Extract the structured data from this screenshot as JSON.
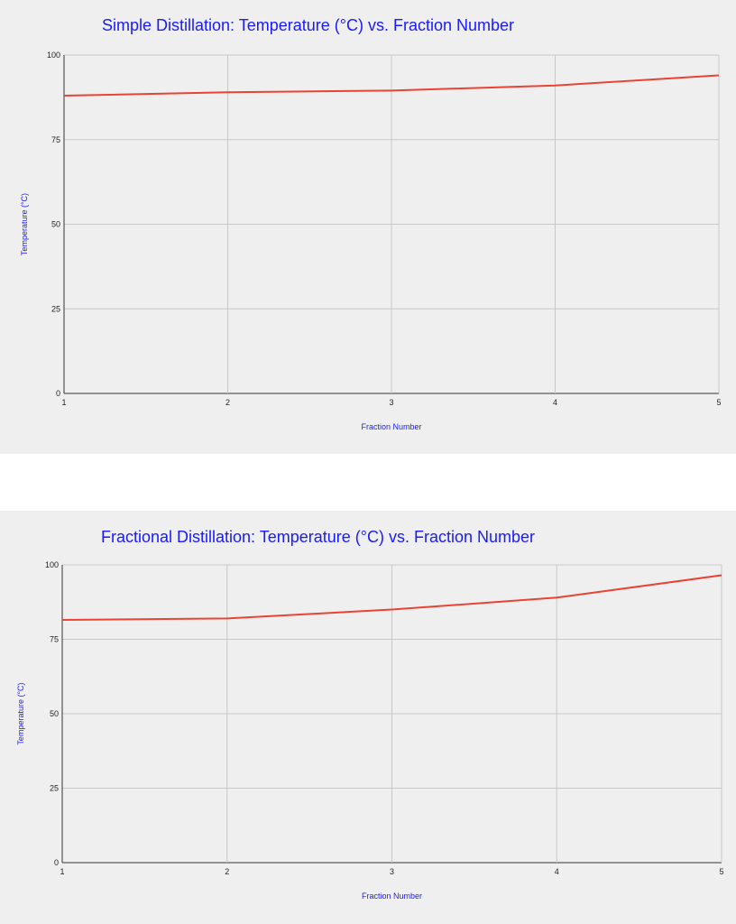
{
  "chart_data": [
    {
      "type": "line",
      "title": "Simple Distillation: Temperature (°C) vs. Fraction Number",
      "xlabel": "Fraction Number",
      "ylabel": "Temperature (°C)",
      "x": [
        1,
        2,
        3,
        4,
        5
      ],
      "series": [
        {
          "values": [
            88,
            89,
            89.5,
            91,
            94
          ],
          "color": "#ea4335"
        }
      ],
      "xlim": [
        1,
        5
      ],
      "ylim": [
        0,
        100
      ],
      "xticks": [
        "1",
        "2",
        "3",
        "4",
        "5"
      ],
      "yticks": [
        "0",
        "25",
        "50",
        "75",
        "100"
      ],
      "grid": true,
      "legend": "none"
    },
    {
      "type": "line",
      "title": "Fractional Distillation: Temperature (°C) vs. Fraction Number",
      "xlabel": "Fraction Number",
      "ylabel": "Temperature (°C)",
      "x": [
        1,
        2,
        3,
        4,
        5
      ],
      "series": [
        {
          "values": [
            81.5,
            82,
            85,
            89,
            96.5
          ],
          "color": "#ea4335"
        }
      ],
      "xlim": [
        1,
        5
      ],
      "ylim": [
        0,
        100
      ],
      "xticks": [
        "1",
        "2",
        "3",
        "4",
        "5"
      ],
      "yticks": [
        "0",
        "25",
        "50",
        "75",
        "100"
      ],
      "grid": true,
      "legend": "none"
    }
  ]
}
